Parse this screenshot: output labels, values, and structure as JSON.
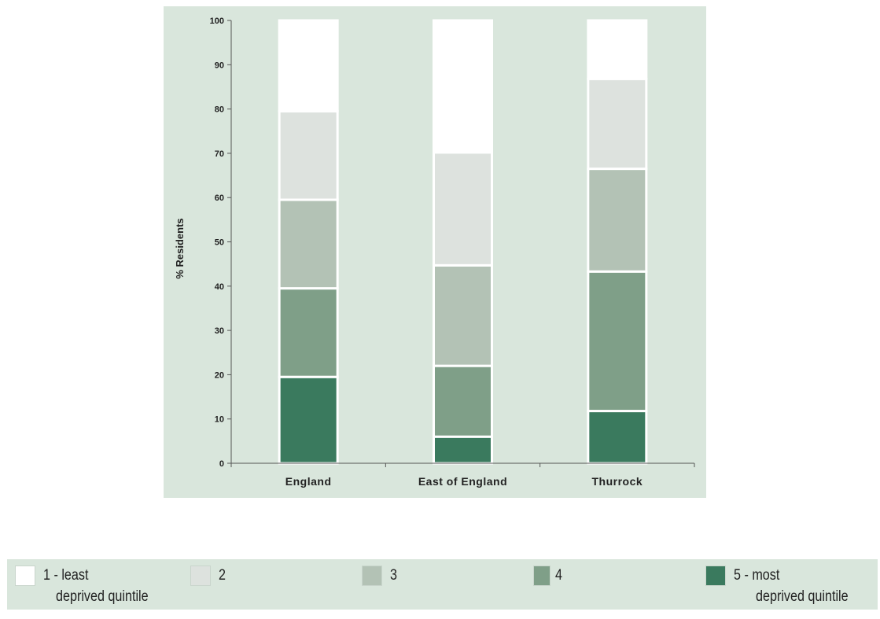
{
  "chart_data": {
    "type": "bar",
    "stacked": true,
    "categories": [
      "England",
      "East of England",
      "Thurrock"
    ],
    "ylabel": "% Residents",
    "ylim": [
      0,
      100
    ],
    "yticks": [
      0,
      10,
      20,
      30,
      40,
      50,
      60,
      70,
      80,
      90,
      100
    ],
    "series": [
      {
        "name": "5 - most deprived quintile",
        "color": "#3a7a5e",
        "values": [
          19.5,
          6,
          11.8
        ]
      },
      {
        "name": "4",
        "color": "#7f9f88",
        "values": [
          20,
          16,
          31.5
        ]
      },
      {
        "name": "3",
        "color": "#b3c2b5",
        "values": [
          20,
          22.7,
          23.2
        ]
      },
      {
        "name": "2",
        "color": "#dde2de",
        "values": [
          20,
          25.5,
          20.3
        ]
      },
      {
        "name": "1 - least deprived quintile",
        "color": "#ffffff",
        "values": [
          20.5,
          29.8,
          13.2
        ]
      }
    ],
    "grid": false,
    "legend_position": "bottom"
  },
  "legend": [
    {
      "line1": "1 - least",
      "line2": "deprived quintile",
      "color": "#ffffff"
    },
    {
      "line1": "2",
      "line2": "",
      "color": "#dde2de"
    },
    {
      "line1": "3",
      "line2": "",
      "color": "#b3c2b5"
    },
    {
      "line1": "4",
      "line2": "",
      "color": "#7f9f88"
    },
    {
      "line1": "5 - most",
      "line2": "deprived quintile",
      "color": "#3a7a5e"
    }
  ]
}
